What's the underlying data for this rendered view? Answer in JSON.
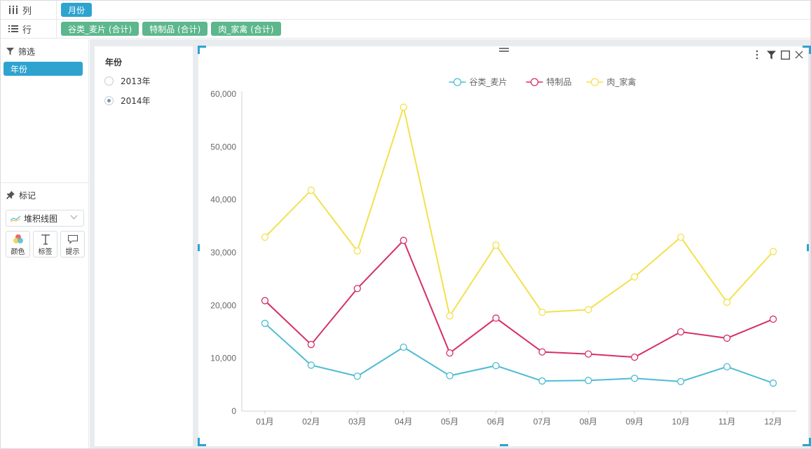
{
  "shelves": {
    "columns": {
      "label": "列",
      "pills": [
        {
          "label": "月份"
        }
      ]
    },
    "rows": {
      "label": "行",
      "pills": [
        {
          "label": "谷类_麦片 (合计)"
        },
        {
          "label": "特制品 (合计)"
        },
        {
          "label": "肉_家禽 (合计)"
        }
      ]
    }
  },
  "filter_panel": {
    "title": "筛选",
    "chip": "年份"
  },
  "marks_panel": {
    "title": "标记",
    "chart_type": "堆积线图",
    "buttons": [
      {
        "label": "颜色"
      },
      {
        "label": "标签"
      },
      {
        "label": "提示"
      }
    ]
  },
  "year_filter": {
    "title": "年份",
    "options": [
      {
        "label": "2013年",
        "checked": false
      },
      {
        "label": "2014年",
        "checked": true
      }
    ]
  },
  "colors": {
    "accent": "#2ea3cf",
    "pill_green": "#5cb78c"
  },
  "chart_data": {
    "type": "line",
    "stacked": true,
    "categories": [
      "01月",
      "02月",
      "03月",
      "04月",
      "05月",
      "06月",
      "07月",
      "08月",
      "09月",
      "10月",
      "11月",
      "12月"
    ],
    "series": [
      {
        "name": "谷类_麦片",
        "color": "#4dbcd3",
        "values": [
          16600,
          8700,
          6600,
          12100,
          6700,
          8600,
          5700,
          5800,
          6200,
          5600,
          8400,
          5300
        ]
      },
      {
        "name": "特制品",
        "color": "#d63065",
        "values": [
          4300,
          3900,
          16600,
          20200,
          4300,
          9000,
          5500,
          5000,
          4000,
          9400,
          5400,
          12100
        ]
      },
      {
        "name": "肉_家禽",
        "color": "#f2e14d",
        "values": [
          12000,
          29200,
          7100,
          25200,
          7000,
          13800,
          7500,
          8400,
          15200,
          17900,
          6800,
          12800
        ]
      }
    ],
    "ylim": [
      0,
      60000
    ],
    "yticks": [
      0,
      10000,
      20000,
      30000,
      40000,
      50000,
      60000
    ],
    "ytick_labels": [
      "0",
      "10,000",
      "20,000",
      "30,000",
      "40,000",
      "50,000",
      "60,000"
    ],
    "grid": false,
    "legend_position": "top-center",
    "title": "",
    "xlabel": "",
    "ylabel": ""
  }
}
